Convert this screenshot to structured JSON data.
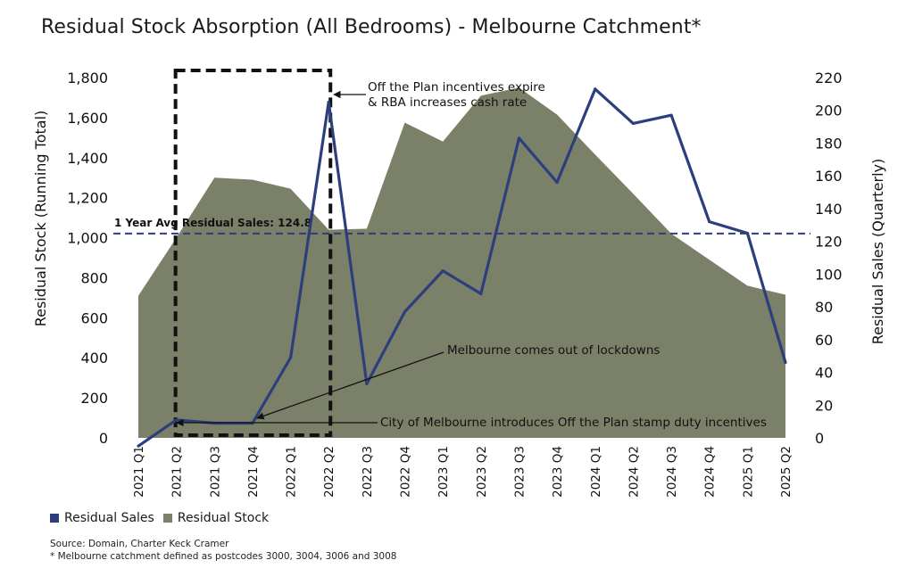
{
  "title": "Residual Stock Absorption (All Bedrooms) - Melbourne Catchment*",
  "colors": {
    "residual_sales": "#2d3e7c",
    "residual_stock": "#7b8069",
    "avg_line": "#2d3e7c",
    "box": "#111111"
  },
  "chart_data": {
    "type": "area",
    "categories": [
      "2021 Q1",
      "2021 Q2",
      "2021 Q3",
      "2021 Q4",
      "2022 Q1",
      "2022 Q2",
      "2022 Q3",
      "2022 Q4",
      "2023 Q1",
      "2023 Q2",
      "2023 Q3",
      "2023 Q4",
      "2024 Q1",
      "2024 Q2",
      "2024 Q3",
      "2024 Q4",
      "2025 Q1",
      "2025 Q2"
    ],
    "series": [
      {
        "name": "Residual Sales",
        "type": "line",
        "axis": "right",
        "values": [
          -5,
          11,
          9,
          9,
          49,
          205,
          33,
          77,
          102,
          88,
          183,
          156,
          213,
          192,
          197,
          132,
          125,
          46
        ]
      },
      {
        "name": "Residual Stock",
        "type": "area",
        "axis": "left",
        "values": [
          710,
          1000,
          1300,
          1290,
          1245,
          1040,
          1045,
          1575,
          1480,
          1710,
          1750,
          1615,
          1415,
          1220,
          1020,
          890,
          760,
          715
        ]
      }
    ],
    "y_left": {
      "label": "Residual Stock (Running Total)",
      "ticks": [
        "0",
        "200",
        "400",
        "600",
        "800",
        "1,000",
        "1,200",
        "1,400",
        "1,600",
        "1,800"
      ],
      "min": 0,
      "max": 1800
    },
    "y_right": {
      "label": "Residual Sales (Quarterly)",
      "ticks": [
        "0",
        "20",
        "40",
        "60",
        "80",
        "100",
        "120",
        "140",
        "160",
        "180",
        "200",
        "220"
      ],
      "min": 0,
      "max": 220
    },
    "reference_line": {
      "label": "1 Year Avg Residual Sales: 124.8",
      "value": 124.8,
      "axis": "right"
    },
    "annotations": [
      {
        "text": [
          "Off the Plan incentives expire",
          "& RBA increases cash rate"
        ]
      },
      {
        "text": [
          "Melbourne comes out of lockdowns"
        ]
      },
      {
        "text": [
          "City of Melbourne introduces Off the Plan stamp duty incentives"
        ]
      }
    ],
    "highlight_box": {
      "from": "2021 Q2",
      "to": "2022 Q2"
    },
    "legend_position": "bottom-left",
    "grid": false
  },
  "legend": [
    {
      "label": "Residual Sales",
      "color": "#2d3e7c"
    },
    {
      "label": "Residual Stock",
      "color": "#7b8069"
    }
  ],
  "notes": [
    "Source: Domain, Charter Keck Cramer",
    "* Melbourne catchment defined as postcodes 3000, 3004, 3006 and 3008"
  ]
}
